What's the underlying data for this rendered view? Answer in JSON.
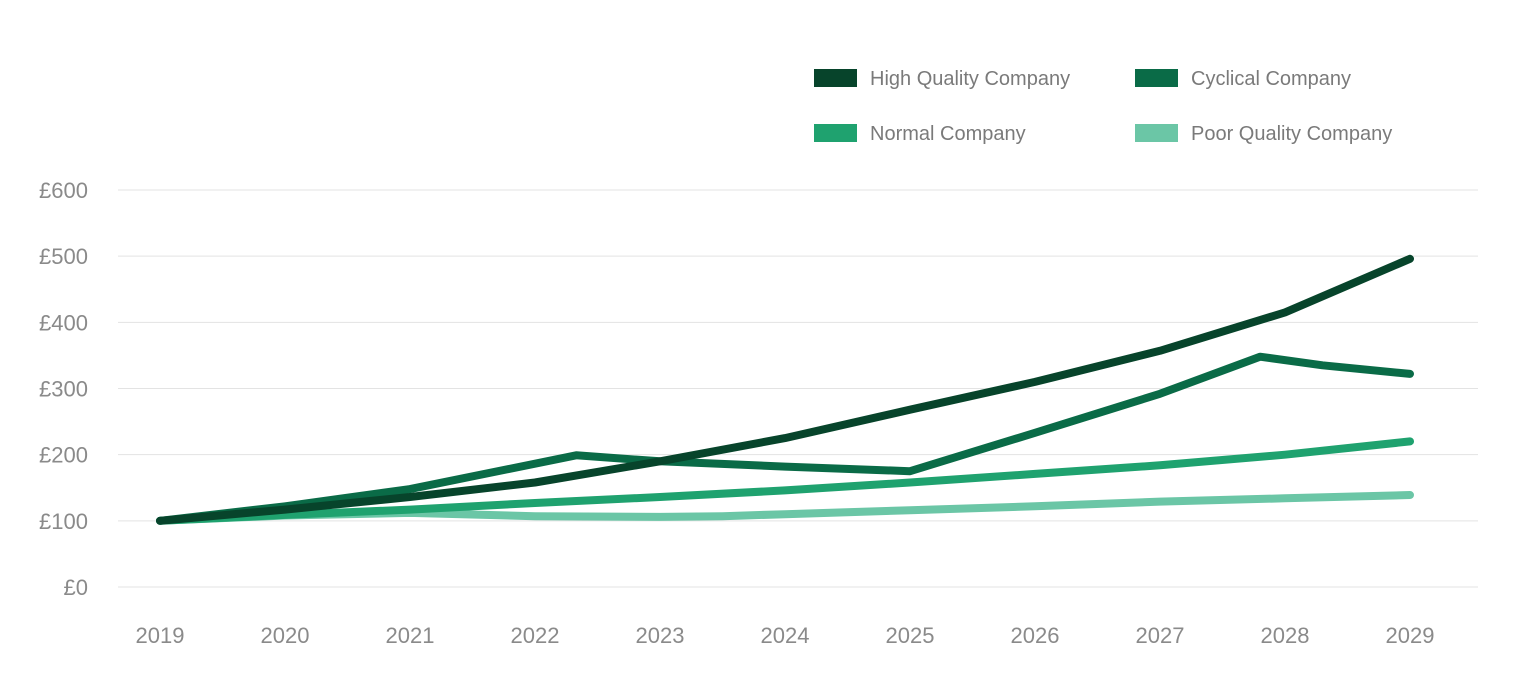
{
  "chart_data": {
    "type": "line",
    "title": "",
    "xlabel": "",
    "ylabel": "",
    "x": [
      2019,
      2020,
      2021,
      2022,
      2023,
      2024,
      2025,
      2026,
      2027,
      2028,
      2029
    ],
    "x_ticks": [
      "2019",
      "2020",
      "2021",
      "2022",
      "2023",
      "2024",
      "2025",
      "2026",
      "2027",
      "2028",
      "2029"
    ],
    "y_ticks": [
      {
        "value": 0,
        "label": "£0"
      },
      {
        "value": 100,
        "label": "£100"
      },
      {
        "value": 200,
        "label": "£200"
      },
      {
        "value": 300,
        "label": "£300"
      },
      {
        "value": 400,
        "label": "£400"
      },
      {
        "value": 500,
        "label": "£500"
      },
      {
        "value": 600,
        "label": "£600"
      }
    ],
    "ylim": [
      0,
      600
    ],
    "grid": true,
    "legend_position": "top-right",
    "series": [
      {
        "name": "High Quality Company",
        "color": "#07442B",
        "points": [
          [
            2019,
            100
          ],
          [
            2020,
            117
          ],
          [
            2021,
            136
          ],
          [
            2022,
            158
          ],
          [
            2023,
            190
          ],
          [
            2024,
            225
          ],
          [
            2025,
            268
          ],
          [
            2026,
            310
          ],
          [
            2027,
            357
          ],
          [
            2028,
            415
          ],
          [
            2029,
            496
          ]
        ]
      },
      {
        "name": "Cyclical Company",
        "color": "#0A6B47",
        "points": [
          [
            2019,
            100
          ],
          [
            2020,
            122
          ],
          [
            2021,
            148
          ],
          [
            2022.33,
            199
          ],
          [
            2023,
            190
          ],
          [
            2024,
            182
          ],
          [
            2025,
            175
          ],
          [
            2026,
            233
          ],
          [
            2027,
            292
          ],
          [
            2027.8,
            348
          ],
          [
            2028.3,
            335
          ],
          [
            2029,
            322
          ]
        ]
      },
      {
        "name": "Normal Company",
        "color": "#1FA26F",
        "points": [
          [
            2019,
            100
          ],
          [
            2020,
            109
          ],
          [
            2021,
            117
          ],
          [
            2022,
            127
          ],
          [
            2023,
            136
          ],
          [
            2024,
            146
          ],
          [
            2025,
            158
          ],
          [
            2026,
            171
          ],
          [
            2027,
            184
          ],
          [
            2028,
            200
          ],
          [
            2029,
            220
          ]
        ]
      },
      {
        "name": "Poor Quality Company",
        "color": "#6BC6A6",
        "points": [
          [
            2019,
            100
          ],
          [
            2020,
            108
          ],
          [
            2021,
            112
          ],
          [
            2022,
            107
          ],
          [
            2023,
            106
          ],
          [
            2023.5,
            107
          ],
          [
            2024,
            110
          ],
          [
            2025,
            116
          ],
          [
            2026,
            122
          ],
          [
            2027,
            129
          ],
          [
            2028,
            134
          ],
          [
            2029,
            139
          ]
        ]
      }
    ]
  }
}
